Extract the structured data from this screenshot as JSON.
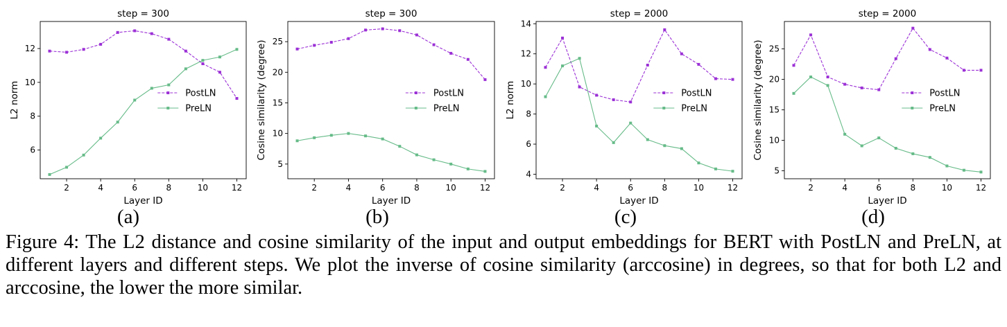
{
  "colors": {
    "postln": "#9b30d6",
    "preln": "#66bb88"
  },
  "chart_data": [
    {
      "type": "line",
      "title": "step = 300",
      "xlabel": "Layer ID",
      "ylabel": "L2 norm",
      "panel_label": "(a)",
      "x": [
        1,
        2,
        3,
        4,
        5,
        6,
        7,
        8,
        9,
        10,
        11,
        12
      ],
      "xticks": [
        2,
        4,
        6,
        8,
        10,
        12
      ],
      "yticks": [
        6,
        8,
        10,
        12
      ],
      "xlim": [
        0.45,
        12.55
      ],
      "ylim": [
        4.3,
        13.6
      ],
      "legend": "center-right",
      "series": [
        {
          "name": "PostLN",
          "style": "dashed",
          "values": [
            11.85,
            11.78,
            11.95,
            12.25,
            12.95,
            13.05,
            12.88,
            12.55,
            11.85,
            11.1,
            10.6,
            9.05
          ]
        },
        {
          "name": "PreLN",
          "style": "solid",
          "values": [
            4.55,
            4.98,
            5.7,
            6.7,
            7.65,
            8.95,
            9.65,
            9.85,
            10.8,
            11.3,
            11.5,
            11.95
          ]
        }
      ]
    },
    {
      "type": "line",
      "title": "step = 300",
      "xlabel": "Layer ID",
      "ylabel": "Cosine similarity (degree)",
      "panel_label": "(b)",
      "x": [
        1,
        2,
        3,
        4,
        5,
        6,
        7,
        8,
        9,
        10,
        11,
        12
      ],
      "xticks": [
        2,
        4,
        6,
        8,
        10,
        12
      ],
      "yticks": [
        5,
        10,
        15,
        20,
        25
      ],
      "xlim": [
        0.45,
        12.55
      ],
      "ylim": [
        2.6,
        28.3
      ],
      "legend": "center-right",
      "series": [
        {
          "name": "PostLN",
          "style": "dashed",
          "values": [
            23.8,
            24.4,
            24.9,
            25.5,
            26.9,
            27.1,
            26.8,
            26.1,
            24.5,
            23.1,
            22.1,
            18.8
          ]
        },
        {
          "name": "PreLN",
          "style": "solid",
          "values": [
            8.8,
            9.3,
            9.7,
            10.0,
            9.6,
            9.1,
            7.9,
            6.5,
            5.7,
            5.0,
            4.2,
            3.8
          ]
        }
      ]
    },
    {
      "type": "line",
      "title": "step = 2000",
      "xlabel": "Layer ID",
      "ylabel": "L2 norm",
      "panel_label": "(c)",
      "x": [
        1,
        2,
        3,
        4,
        5,
        6,
        7,
        8,
        9,
        10,
        11,
        12
      ],
      "xticks": [
        2,
        4,
        6,
        8,
        10,
        12
      ],
      "yticks": [
        4,
        6,
        8,
        10,
        12,
        14
      ],
      "xlim": [
        0.45,
        12.55
      ],
      "ylim": [
        3.7,
        14.15
      ],
      "legend": "center-right",
      "series": [
        {
          "name": "PostLN",
          "style": "dashed",
          "values": [
            11.1,
            13.05,
            9.8,
            9.25,
            8.95,
            8.8,
            11.25,
            13.6,
            12.0,
            11.3,
            10.35,
            10.3
          ]
        },
        {
          "name": "PreLN",
          "style": "solid",
          "values": [
            9.15,
            11.2,
            11.7,
            7.2,
            6.1,
            7.4,
            6.3,
            5.9,
            5.7,
            4.75,
            4.35,
            4.2
          ]
        }
      ]
    },
    {
      "type": "line",
      "title": "step = 2000",
      "xlabel": "Layer ID",
      "ylabel": "Cosine similarity (degree)",
      "panel_label": "(d)",
      "x": [
        1,
        2,
        3,
        4,
        5,
        6,
        7,
        8,
        9,
        10,
        11,
        12
      ],
      "xticks": [
        2,
        4,
        6,
        8,
        10,
        12
      ],
      "yticks": [
        5,
        10,
        15,
        20,
        25
      ],
      "xlim": [
        0.45,
        12.55
      ],
      "ylim": [
        3.7,
        29.5
      ],
      "legend": "center-right",
      "series": [
        {
          "name": "PostLN",
          "style": "dashed",
          "values": [
            22.3,
            27.3,
            20.4,
            19.2,
            18.6,
            18.3,
            23.4,
            28.4,
            24.9,
            23.5,
            21.5,
            21.5
          ]
        },
        {
          "name": "PreLN",
          "style": "solid",
          "values": [
            17.7,
            20.4,
            19.0,
            11.0,
            9.1,
            10.4,
            8.7,
            7.8,
            7.2,
            5.8,
            5.1,
            4.8
          ]
        }
      ]
    }
  ],
  "caption": "Figure 4: The L2 distance and cosine similarity of the input and output embeddings for BERT with PostLN and PreLN, at different layers and different steps. We plot the inverse of cosine similarity (arccosine) in degrees, so that for both L2 and arccosine, the lower the more similar."
}
